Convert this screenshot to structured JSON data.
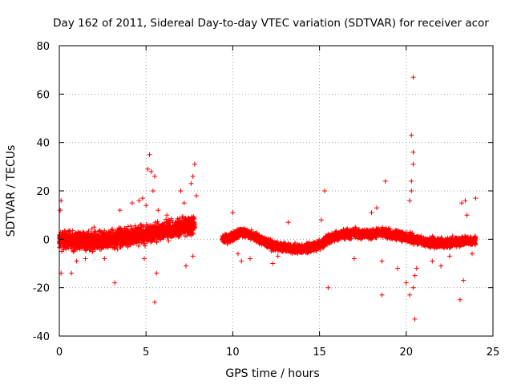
{
  "chart_data": {
    "type": "scatter",
    "title": "Day 162 of 2011, Sidereal Day-to-day VTEC variation (SDTVAR) for receiver acor",
    "xlabel": "GPS time / hours",
    "ylabel": "SDTVAR / TECUs",
    "xlim": [
      0,
      25
    ],
    "ylim": [
      -40,
      80
    ],
    "xticks": [
      0,
      5,
      10,
      15,
      20,
      25
    ],
    "yticks": [
      -40,
      -20,
      0,
      20,
      40,
      60,
      80
    ],
    "xtick_labels": [
      "0",
      "5",
      "10",
      "15",
      "20",
      "25"
    ],
    "ytick_labels": [
      "-40",
      "-20",
      "0",
      "20",
      "40",
      "60",
      "80"
    ],
    "grid": true,
    "marker": "+",
    "color": "#ff0000",
    "series": [
      {
        "name": "SDTVAR",
        "segments": [
          {
            "x": [
              0.0,
              1.0,
              2.0,
              3.0,
              3.6,
              4.2,
              5.0,
              5.8,
              6.5,
              7.0,
              7.8
            ],
            "y": [
              0.0,
              -1.0,
              -0.5,
              0.0,
              1.0,
              1.0,
              2.0,
              3.0,
              4.0,
              5.0,
              6.0
            ],
            "spread": 3.5
          },
          {
            "x": [
              9.4,
              10.0,
              10.5,
              11.0,
              11.5,
              12.0,
              13.0,
              14.0,
              15.0,
              15.5,
              16.0,
              17.0,
              18.0,
              18.5,
              19.0,
              20.0,
              20.5,
              21.0,
              22.0,
              23.0,
              24.0
            ],
            "y": [
              0.0,
              1.0,
              3.0,
              2.0,
              0.0,
              -2.0,
              -3.5,
              -4.0,
              -2.5,
              0.0,
              1.5,
              2.5,
              2.0,
              3.0,
              2.0,
              1.0,
              0.0,
              -1.0,
              -1.5,
              -1.0,
              -0.5
            ],
            "spread": 1.8
          }
        ],
        "outliers": [
          {
            "x": 0.1,
            "y": 16
          },
          {
            "x": 0.05,
            "y": 12
          },
          {
            "x": 0.1,
            "y": -14
          },
          {
            "x": 0.7,
            "y": -14
          },
          {
            "x": 1.0,
            "y": -9
          },
          {
            "x": 1.5,
            "y": -8
          },
          {
            "x": 2.0,
            "y": 5
          },
          {
            "x": 2.6,
            "y": -8
          },
          {
            "x": 3.2,
            "y": -18
          },
          {
            "x": 3.5,
            "y": 12
          },
          {
            "x": 4.2,
            "y": 15
          },
          {
            "x": 4.6,
            "y": 16
          },
          {
            "x": 4.8,
            "y": 17
          },
          {
            "x": 5.0,
            "y": 14
          },
          {
            "x": 4.9,
            "y": -8
          },
          {
            "x": 5.1,
            "y": 29
          },
          {
            "x": 5.2,
            "y": 35
          },
          {
            "x": 5.3,
            "y": 28
          },
          {
            "x": 5.5,
            "y": 26
          },
          {
            "x": 5.4,
            "y": 20
          },
          {
            "x": 5.5,
            "y": -26
          },
          {
            "x": 5.6,
            "y": -14
          },
          {
            "x": 5.7,
            "y": 12
          },
          {
            "x": 6.2,
            "y": 10
          },
          {
            "x": 7.0,
            "y": 20
          },
          {
            "x": 7.2,
            "y": 15
          },
          {
            "x": 7.3,
            "y": -11
          },
          {
            "x": 7.6,
            "y": 23
          },
          {
            "x": 7.7,
            "y": 26
          },
          {
            "x": 7.8,
            "y": 31
          },
          {
            "x": 7.9,
            "y": 18
          },
          {
            "x": 7.7,
            "y": -7
          },
          {
            "x": 10.0,
            "y": 11
          },
          {
            "x": 10.3,
            "y": -6
          },
          {
            "x": 10.5,
            "y": -9
          },
          {
            "x": 11.0,
            "y": -8
          },
          {
            "x": 12.3,
            "y": -10
          },
          {
            "x": 12.6,
            "y": -7
          },
          {
            "x": 13.2,
            "y": 7
          },
          {
            "x": 15.3,
            "y": 20
          },
          {
            "x": 15.5,
            "y": -20
          },
          {
            "x": 15.1,
            "y": 8
          },
          {
            "x": 17.0,
            "y": -8
          },
          {
            "x": 18.0,
            "y": 11
          },
          {
            "x": 18.3,
            "y": 13
          },
          {
            "x": 18.6,
            "y": -9
          },
          {
            "x": 18.8,
            "y": 24
          },
          {
            "x": 18.6,
            "y": -23
          },
          {
            "x": 19.5,
            "y": -12
          },
          {
            "x": 20.0,
            "y": -18
          },
          {
            "x": 20.2,
            "y": -23
          },
          {
            "x": 20.4,
            "y": 67
          },
          {
            "x": 20.3,
            "y": 43
          },
          {
            "x": 20.4,
            "y": 36
          },
          {
            "x": 20.4,
            "y": 31
          },
          {
            "x": 20.3,
            "y": 24
          },
          {
            "x": 20.3,
            "y": 20
          },
          {
            "x": 20.2,
            "y": 16
          },
          {
            "x": 20.5,
            "y": -33
          },
          {
            "x": 20.4,
            "y": -20
          },
          {
            "x": 20.5,
            "y": -15
          },
          {
            "x": 20.6,
            "y": -12
          },
          {
            "x": 21.5,
            "y": -9
          },
          {
            "x": 22.0,
            "y": -11
          },
          {
            "x": 22.5,
            "y": -7
          },
          {
            "x": 23.2,
            "y": 15
          },
          {
            "x": 23.4,
            "y": 16
          },
          {
            "x": 23.3,
            "y": -17
          },
          {
            "x": 23.1,
            "y": -25
          },
          {
            "x": 23.5,
            "y": 10
          },
          {
            "x": 24.0,
            "y": 17
          },
          {
            "x": 23.8,
            "y": -6
          }
        ]
      }
    ]
  }
}
